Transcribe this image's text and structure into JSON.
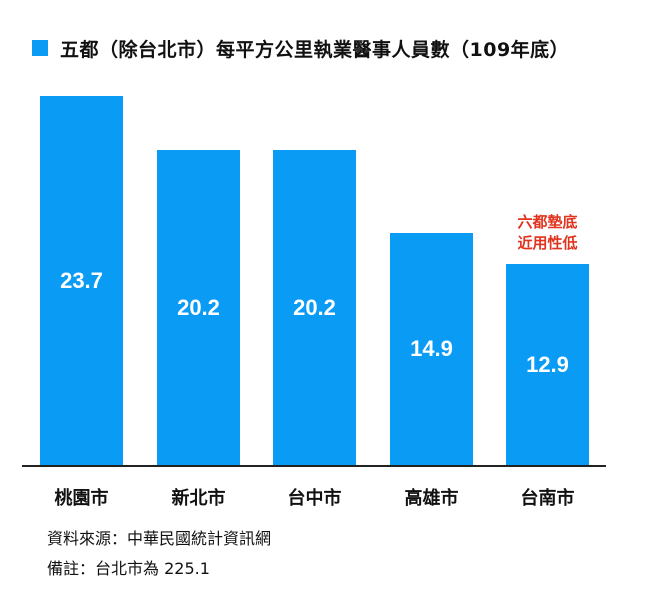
{
  "chart_data": {
    "type": "bar",
    "title": "五都（除台北市）每平方公里執業醫事人員數（109年底）",
    "categories": [
      "桃園市",
      "新北市",
      "台中市",
      "高雄市",
      "台南市"
    ],
    "values": [
      23.7,
      20.2,
      20.2,
      14.9,
      12.9
    ],
    "value_labels": [
      "23.7",
      "20.2",
      "20.2",
      "14.9",
      "12.9"
    ],
    "series": [
      {
        "name": "五都（除台北市）每平方公里執業醫事人員數（109年底）",
        "values": [
          23.7,
          20.2,
          20.2,
          14.9,
          12.9
        ]
      }
    ],
    "xlabel": "",
    "ylabel": "",
    "ylim": [
      0,
      24
    ],
    "grid": false,
    "legend_position": "top-left",
    "annotations": [
      {
        "category": "台南市",
        "text": [
          "六都墊底",
          "近用性低"
        ],
        "color": "#e0341f"
      }
    ],
    "bar_color": "#0a9bf5"
  },
  "legend": {
    "label": "五都（除台北市）每平方公里執業醫事人員數（109年底）",
    "color": "#0a9bf5"
  },
  "annotation": {
    "line1": "六都墊底",
    "line2": "近用性低",
    "color": "#e0341f"
  },
  "footnotes": {
    "source": "資料來源：中華民國統計資訊網",
    "note": "備註：台北市為 225.1"
  }
}
